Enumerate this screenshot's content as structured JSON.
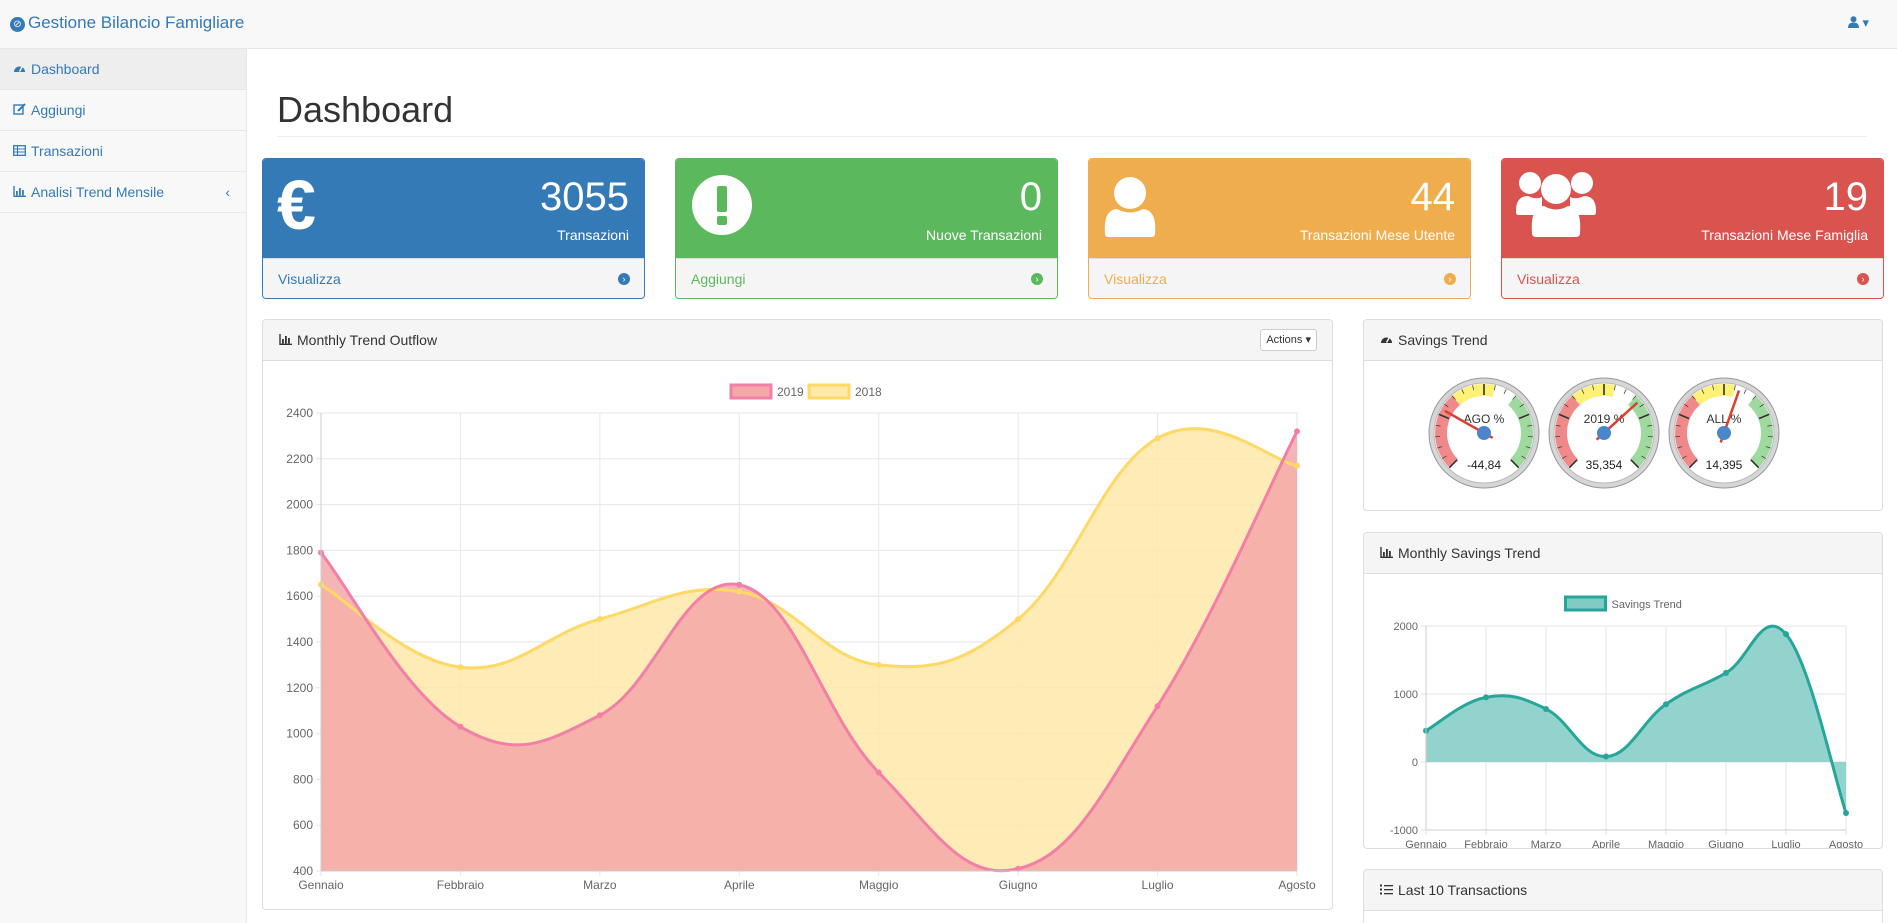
{
  "navbar": {
    "brand": "Gestione Bilancio Famigliare",
    "user_icon": "user-icon",
    "caret": "▾"
  },
  "sidebar": {
    "items": [
      {
        "label": "Dashboard",
        "icon": "dashboard-icon"
      },
      {
        "label": "Aggiungi",
        "icon": "edit-icon"
      },
      {
        "label": "Transazioni",
        "icon": "table-icon"
      },
      {
        "label": "Analisi Trend Mensile",
        "icon": "bar-chart-icon"
      }
    ],
    "chevron": "‹"
  },
  "page": {
    "title": "Dashboard"
  },
  "stats": [
    {
      "value": "3055",
      "label": "Transazioni",
      "link": "Visualizza",
      "color": "#337ab7",
      "icon": "euro-icon"
    },
    {
      "value": "0",
      "label": "Nuove Transazioni",
      "link": "Aggiungi",
      "color": "#5cb85c",
      "icon": "exclamation-icon"
    },
    {
      "value": "44",
      "label": "Transazioni Mese Utente",
      "link": "Visualizza",
      "color": "#f0ad4e",
      "icon": "user-icon"
    },
    {
      "value": "19",
      "label": "Transazioni Mese Famiglia",
      "link": "Visualizza",
      "color": "#d9534f",
      "icon": "users-icon"
    }
  ],
  "panels": {
    "outflow": {
      "title": "Monthly Trend Outflow",
      "actions": "Actions"
    },
    "savings": {
      "title": "Savings Trend"
    },
    "monthly_savings": {
      "title": "Monthly Savings Trend"
    },
    "last10": {
      "title": "Last 10 Transactions"
    }
  },
  "gauges": [
    {
      "title": "AGO %",
      "value": "-44,84"
    },
    {
      "title": "2019 %",
      "value": "35,354"
    },
    {
      "title": "ALL %",
      "value": "14,395"
    }
  ],
  "chart_data": [
    {
      "type": "area",
      "title": "Monthly Trend Outflow",
      "categories": [
        "Gennaio",
        "Febbraio",
        "Marzo",
        "Aprile",
        "Maggio",
        "Giugno",
        "Luglio",
        "Agosto"
      ],
      "series": [
        {
          "name": "2019",
          "values": [
            1790,
            1030,
            1080,
            1650,
            830,
            410,
            1120,
            2320
          ],
          "color": "#f27fa8",
          "fill": "#f5a8a8"
        },
        {
          "name": "2018",
          "values": [
            1650,
            1290,
            1500,
            1620,
            1300,
            1500,
            2290,
            2170
          ],
          "color": "#ffd966",
          "fill": "#ffe8a8"
        }
      ],
      "ylim": [
        400,
        2400
      ],
      "yticks": [
        "400",
        "600",
        "800",
        "1000",
        "1200",
        "1400",
        "1600",
        "1800",
        "2000",
        "2200",
        "2400"
      ],
      "legend": "top-center"
    },
    {
      "type": "area",
      "title": "Monthly Savings Trend",
      "categories": [
        "Gennaio",
        "Febbraio",
        "Marzo",
        "Aprile",
        "Maggio",
        "Giugno",
        "Luglio",
        "Agosto"
      ],
      "series": [
        {
          "name": "Savings Trend",
          "values": [
            460,
            950,
            780,
            80,
            850,
            1310,
            1880,
            -750
          ],
          "color": "#26a69a",
          "fill": "#80cbc4"
        }
      ],
      "ylim": [
        -1000,
        2000
      ],
      "yticks": [
        "-1000",
        "0",
        "1000",
        "2000"
      ],
      "legend": "top-center"
    }
  ]
}
